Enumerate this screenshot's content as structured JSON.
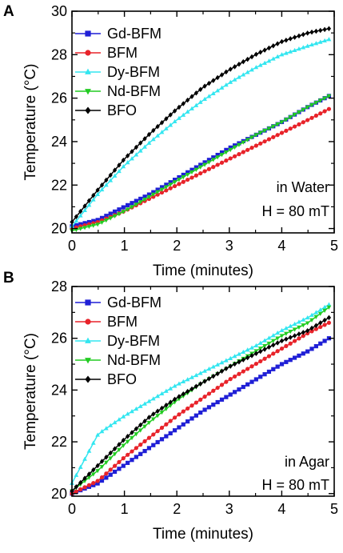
{
  "chart_data": [
    {
      "panel_label": "A",
      "type": "line",
      "xlabel": "Time (minutes)",
      "ylabel": "Temperature (°C)",
      "xlim": [
        0,
        5
      ],
      "ylim": [
        19.8,
        30
      ],
      "xticks": [
        "0",
        "1",
        "2",
        "3",
        "4",
        "5"
      ],
      "yticks": [
        "20",
        "22",
        "24",
        "26",
        "28",
        "30"
      ],
      "legend_position": "top-left",
      "grid": false,
      "annotations": [
        "in Water",
        "H = 80 mT"
      ],
      "x": [
        0,
        0.5,
        1,
        1.5,
        2,
        2.5,
        3,
        3.5,
        4,
        4.5,
        4.9
      ],
      "series": [
        {
          "name": "Gd-BFM",
          "color": "#1f1fd6",
          "marker": "square",
          "values": [
            20.1,
            20.4,
            21.0,
            21.6,
            22.3,
            23.0,
            23.7,
            24.3,
            24.9,
            25.6,
            26.1
          ]
        },
        {
          "name": "BFM",
          "color": "#e8232a",
          "marker": "circle",
          "values": [
            20.0,
            20.3,
            20.8,
            21.4,
            22.0,
            22.6,
            23.2,
            23.8,
            24.4,
            25.0,
            25.5
          ]
        },
        {
          "name": "Dy-BFM",
          "color": "#33e6f0",
          "marker": "triangle-up",
          "values": [
            20.1,
            21.6,
            22.9,
            24.0,
            25.0,
            25.9,
            26.7,
            27.4,
            28.0,
            28.4,
            28.7
          ]
        },
        {
          "name": "Nd-BFM",
          "color": "#22cc22",
          "marker": "triangle-down",
          "values": [
            19.9,
            20.2,
            20.8,
            21.5,
            22.2,
            22.9,
            23.6,
            24.3,
            24.9,
            25.6,
            26.1
          ]
        },
        {
          "name": "BFO",
          "color": "#000000",
          "marker": "diamond",
          "values": [
            20.3,
            21.8,
            23.2,
            24.4,
            25.5,
            26.5,
            27.3,
            28.0,
            28.6,
            29.0,
            29.2
          ]
        }
      ]
    },
    {
      "panel_label": "B",
      "type": "line",
      "xlabel": "Time (minutes)",
      "ylabel": "Temperature (°C)",
      "xlim": [
        0,
        5
      ],
      "ylim": [
        19.9,
        28
      ],
      "xticks": [
        "0",
        "1",
        "2",
        "3",
        "4",
        "5"
      ],
      "yticks": [
        "20",
        "22",
        "24",
        "26",
        "28"
      ],
      "legend_position": "top-left",
      "grid": false,
      "annotations": [
        "in Agar",
        "H = 80 mT"
      ],
      "x": [
        0,
        0.5,
        1,
        1.5,
        2,
        2.5,
        3,
        3.5,
        4,
        4.5,
        4.9
      ],
      "series": [
        {
          "name": "Gd-BFM",
          "color": "#1f1fd6",
          "marker": "square",
          "values": [
            20.0,
            20.4,
            21.1,
            21.8,
            22.5,
            23.2,
            23.8,
            24.4,
            25.0,
            25.5,
            26.0
          ]
        },
        {
          "name": "BFM",
          "color": "#e8232a",
          "marker": "circle",
          "values": [
            20.0,
            20.5,
            21.4,
            22.2,
            23.0,
            23.7,
            24.4,
            25.0,
            25.6,
            26.2,
            26.6
          ]
        },
        {
          "name": "Dy-BFM",
          "color": "#33e6f0",
          "marker": "triangle-up",
          "values": [
            20.4,
            22.3,
            23.0,
            23.6,
            24.2,
            24.7,
            25.2,
            25.7,
            26.3,
            26.8,
            27.3
          ]
        },
        {
          "name": "Nd-BFM",
          "color": "#22cc22",
          "marker": "triangle-down",
          "values": [
            20.1,
            20.9,
            21.9,
            22.8,
            23.6,
            24.3,
            24.9,
            25.5,
            26.1,
            26.6,
            27.2
          ]
        },
        {
          "name": "BFO",
          "color": "#000000",
          "marker": "diamond",
          "values": [
            20.1,
            21.1,
            22.1,
            23.0,
            23.7,
            24.3,
            24.9,
            25.4,
            25.9,
            26.3,
            26.8
          ]
        }
      ]
    }
  ]
}
